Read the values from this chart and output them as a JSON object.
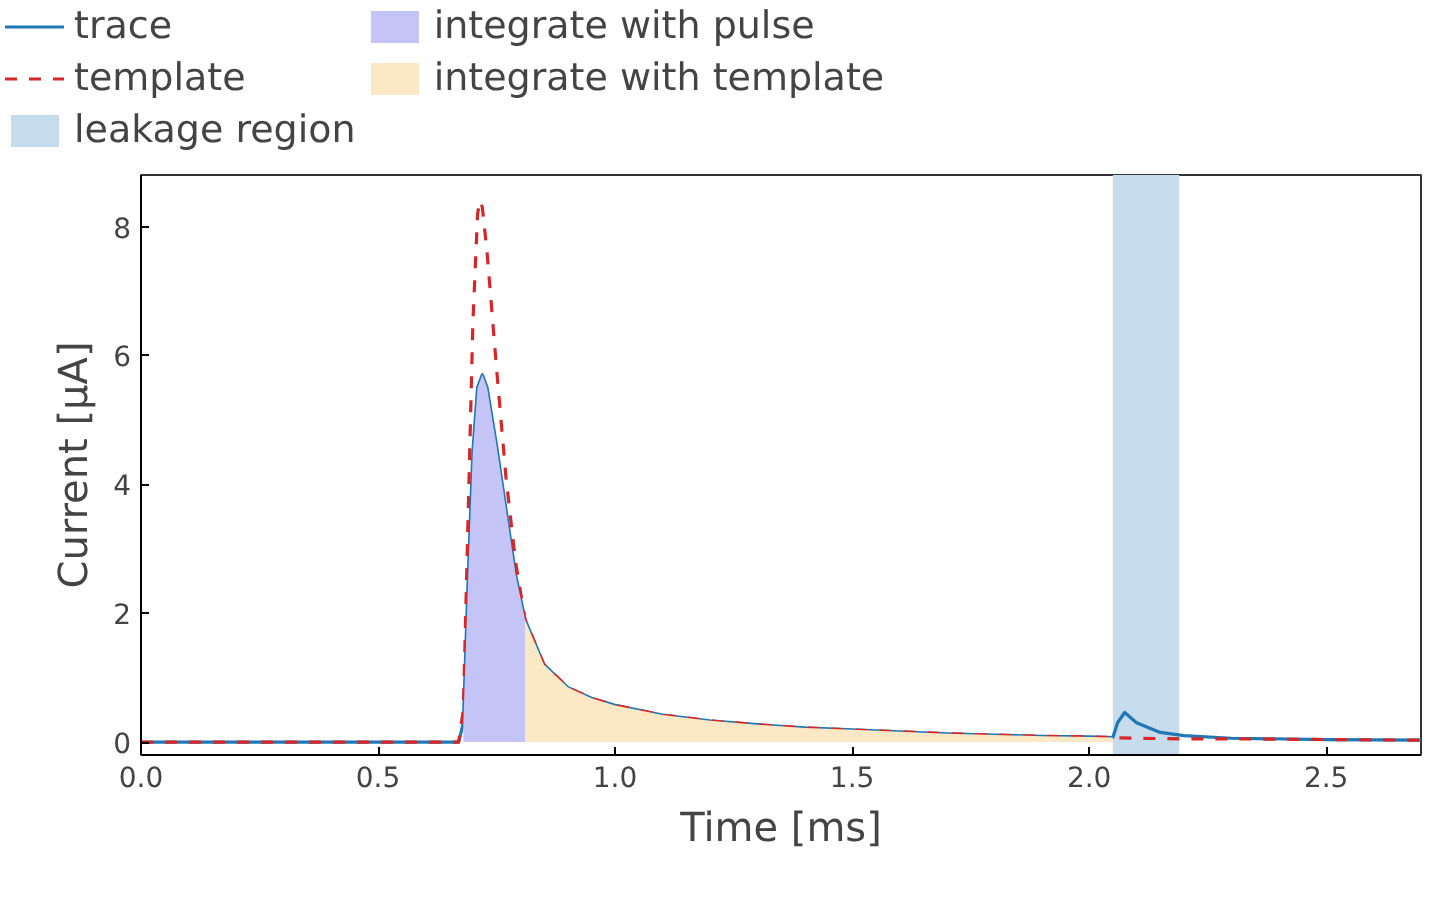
{
  "chart_data": {
    "type": "line",
    "xlabel": "Time [ms]",
    "ylabel": "Current [μA]",
    "xlim": [
      0,
      2.7
    ],
    "ylim": [
      -0.2,
      8.8
    ],
    "xticks": [
      {
        "value": 0,
        "label": "0.0"
      },
      0.5,
      {
        "value": 1,
        "label": "1.0"
      },
      1.5,
      {
        "value": 2,
        "label": "2.0"
      },
      2.5
    ],
    "yticks": [
      0,
      2,
      4,
      6,
      8
    ],
    "grid": false,
    "legend": "top",
    "marker": "none",
    "series": [
      {
        "name": "trace",
        "color": "#1f77b4",
        "line_style": "solid",
        "x": [
          0,
          0.1,
          0.2,
          0.3,
          0.4,
          0.5,
          0.6,
          0.67,
          0.68,
          0.69,
          0.7,
          0.71,
          0.72,
          0.73,
          0.75,
          0.77,
          0.79,
          0.81,
          0.85,
          0.9,
          0.95,
          1.0,
          1.1,
          1.2,
          1.3,
          1.4,
          1.5,
          1.6,
          1.7,
          1.8,
          1.9,
          2.0,
          2.05,
          2.06,
          2.075,
          2.1,
          2.15,
          2.2,
          2.3,
          2.5,
          2.7
        ],
        "values": [
          0,
          0,
          0,
          0,
          0,
          0,
          0,
          0,
          0.3,
          2.5,
          4.5,
          5.5,
          5.7,
          5.5,
          4.6,
          3.6,
          2.6,
          1.9,
          1.2,
          0.85,
          0.68,
          0.57,
          0.42,
          0.33,
          0.27,
          0.22,
          0.19,
          0.16,
          0.13,
          0.11,
          0.09,
          0.08,
          0.07,
          0.3,
          0.46,
          0.3,
          0.15,
          0.1,
          0.06,
          0.04,
          0.03
        ]
      },
      {
        "name": "template",
        "color": "#d62728",
        "line_style": "dashed",
        "x": [
          0,
          0.1,
          0.2,
          0.3,
          0.4,
          0.5,
          0.6,
          0.67,
          0.68,
          0.69,
          0.7,
          0.71,
          0.715,
          0.72,
          0.73,
          0.75,
          0.77,
          0.79,
          0.81,
          0.85,
          0.9,
          0.95,
          1.0,
          1.1,
          1.2,
          1.3,
          1.4,
          1.5,
          1.6,
          1.7,
          1.8,
          1.9,
          2.0,
          2.05,
          2.1,
          2.2,
          2.3,
          2.5,
          2.7
        ],
        "values": [
          0,
          0,
          0,
          0,
          0,
          0,
          0,
          0,
          0.5,
          3.5,
          6.5,
          8.2,
          8.4,
          8.3,
          7.6,
          5.8,
          4.1,
          2.8,
          1.9,
          1.2,
          0.85,
          0.68,
          0.57,
          0.42,
          0.33,
          0.27,
          0.22,
          0.19,
          0.16,
          0.13,
          0.11,
          0.09,
          0.08,
          0.07,
          0.06,
          0.05,
          0.05,
          0.04,
          0.03
        ]
      },
      {
        "name": "integrate with pulse",
        "type": "area",
        "color": "#c4c4f7",
        "x": [
          0.68,
          0.69,
          0.7,
          0.71,
          0.72,
          0.73,
          0.75,
          0.77,
          0.79,
          0.81
        ],
        "values": [
          0.3,
          2.5,
          4.5,
          5.5,
          5.7,
          5.5,
          4.6,
          3.6,
          2.6,
          1.9
        ]
      },
      {
        "name": "integrate with template",
        "type": "area",
        "color": "#fde8c5",
        "x": [
          0.81,
          0.85,
          0.9,
          0.95,
          1.0,
          1.1,
          1.2,
          1.3,
          1.4,
          1.5,
          1.6,
          1.7,
          1.8,
          1.9,
          2.0,
          2.05
        ],
        "values": [
          1.9,
          1.2,
          0.85,
          0.68,
          0.57,
          0.42,
          0.33,
          0.27,
          0.22,
          0.19,
          0.16,
          0.13,
          0.11,
          0.09,
          0.08,
          0.07
        ]
      }
    ],
    "bands": [
      {
        "axis": "x",
        "from": 2.05,
        "to": 2.19,
        "label": "leakage region",
        "color": "#c6dbec"
      }
    ]
  }
}
